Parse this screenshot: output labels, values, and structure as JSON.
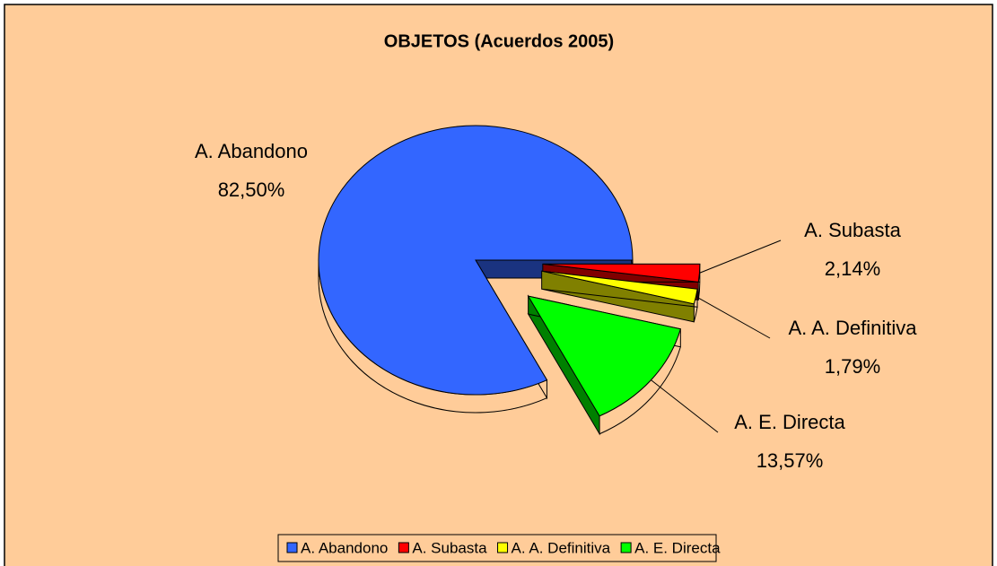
{
  "chart_data": {
    "type": "pie",
    "title": "OBJETOS (Acuerdos 2005)",
    "categories": [
      "A. Abandono",
      "A. Subasta",
      "A. A. Definitiva",
      "A. E. Directa"
    ],
    "values": [
      82.5,
      2.14,
      1.79,
      13.57
    ],
    "value_labels": [
      "82,50%",
      "2,14%",
      "1,79%",
      "13,57%"
    ],
    "colors": [
      "#3366ff",
      "#ff0000",
      "#ffff00",
      "#00ff00"
    ],
    "legend": "bottom"
  }
}
